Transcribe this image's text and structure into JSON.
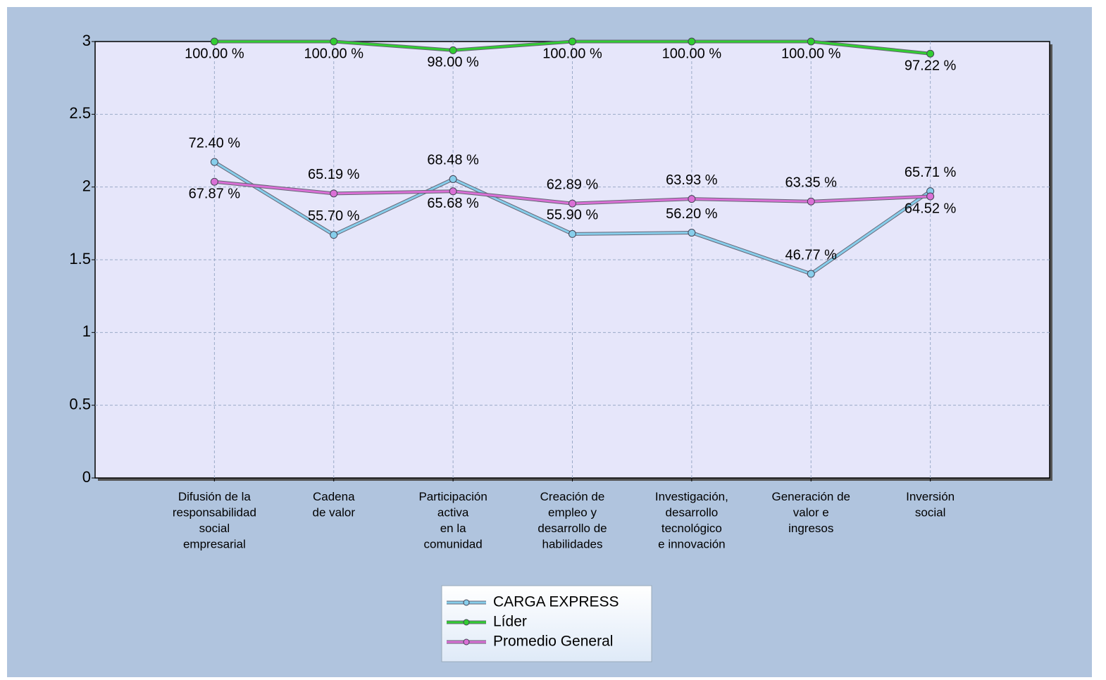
{
  "chart_data": {
    "type": "line",
    "categories": [
      "Difusión de la\nresponsabilidad\nsocial\nempresarial",
      "Cadena\nde valor",
      "Participación\nactiva\nen la\ncomunidad",
      "Creación de\nempleo y\ndesarrollo de\nhabilidades",
      "Investigación,\ndesarrollo\ntecnológico\ne innovación",
      "Generación de\nvalor e\ningresos",
      "Inversión\nsocial"
    ],
    "series": [
      {
        "name": "CARGA EXPRESS",
        "color": "#87ceeb",
        "values": [
          2.172,
          1.671,
          2.0544,
          1.677,
          1.686,
          1.4031,
          1.9713
        ],
        "value_labels": [
          "72.40 %",
          "55.70 %",
          "68.48 %",
          "55.90 %",
          "56.20 %",
          "46.77 %",
          "65.71 %"
        ]
      },
      {
        "name": "Líder",
        "color": "#32cd32",
        "values": [
          3,
          3,
          2.94,
          3,
          3,
          3,
          2.9166
        ],
        "value_labels": [
          "100.00 %",
          "100.00 %",
          "98.00 %",
          "100.00 %",
          "100.00 %",
          "100.00 %",
          "97.22 %"
        ]
      },
      {
        "name": "Promedio General",
        "color": "#da70d6",
        "values": [
          2.0361,
          1.9557,
          1.9704,
          1.8867,
          1.9179,
          1.9005,
          1.9356
        ],
        "value_labels": [
          "67.87 %",
          "65.19 %",
          "65.68 %",
          "62.89 %",
          "63.93 %",
          "63.35 %",
          "64.52 %"
        ]
      }
    ],
    "ylim": [
      0,
      3
    ],
    "yticks": [
      0,
      0.5,
      1,
      1.5,
      2,
      2.5,
      3
    ],
    "grid": true
  }
}
